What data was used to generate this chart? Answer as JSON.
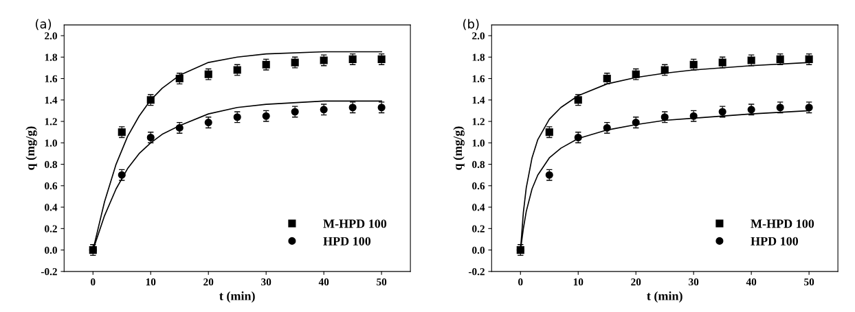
{
  "chart_data": [
    {
      "type": "scatter",
      "xlabel": "t (min)",
      "ylabel": "q (mg/g)",
      "annotations": [
        "(a)"
      ],
      "xlim": [
        -5,
        55
      ],
      "ylim": [
        -0.2,
        2.1
      ],
      "xticks": [
        0,
        10,
        20,
        30,
        40,
        50
      ],
      "yticks": [
        {
          "value": -0.2,
          "label": "-0.2"
        },
        {
          "value": 0,
          "label": "0.0"
        },
        {
          "value": 0.2,
          "label": "0.2"
        },
        {
          "value": 0.4,
          "label": "0.4"
        },
        {
          "value": 0.6,
          "label": "0.6"
        },
        {
          "value": 0.8,
          "label": "0.8"
        },
        {
          "value": 1.0,
          "label": "1.0"
        },
        {
          "value": 1.2,
          "label": "1.2"
        },
        {
          "value": 1.4,
          "label": "1.4"
        },
        {
          "value": 1.6,
          "label": "1.6"
        },
        {
          "value": 1.8,
          "label": "1.8"
        },
        {
          "value": 2.0,
          "label": "2.0"
        }
      ],
      "legend": "bottom right",
      "grid": false,
      "x": [
        0,
        5,
        10,
        15,
        20,
        25,
        30,
        35,
        40,
        45,
        50
      ],
      "series": [
        {
          "name": "M-HPD 100",
          "color": "#000000",
          "marker": "square",
          "values": [
            0,
            1.1,
            1.4,
            1.6,
            1.64,
            1.68,
            1.73,
            1.75,
            1.77,
            1.78,
            1.78
          ],
          "errors": [
            0.05,
            0.05,
            0.05,
            0.05,
            0.05,
            0.05,
            0.05,
            0.05,
            0.05,
            0.05,
            0.05
          ]
        },
        {
          "name": "HPD 100",
          "color": "#000000",
          "marker": "circle",
          "values": [
            0,
            0.7,
            1.05,
            1.14,
            1.19,
            1.24,
            1.25,
            1.29,
            1.31,
            1.33,
            1.33
          ],
          "errors": [
            null,
            0.05,
            0.05,
            0.05,
            0.05,
            0.05,
            0.05,
            0.05,
            0.05,
            0.05,
            0.05
          ]
        },
        {
          "type": "line",
          "color": "#000000",
          "x": [
            0,
            2,
            4,
            6,
            8,
            10,
            12,
            15,
            20,
            25,
            30,
            40,
            50
          ],
          "values": [
            0,
            0.45,
            0.8,
            1.06,
            1.25,
            1.4,
            1.51,
            1.63,
            1.75,
            1.8,
            1.83,
            1.85,
            1.85
          ]
        },
        {
          "type": "line",
          "color": "#000000",
          "x": [
            0,
            2,
            4,
            6,
            8,
            10,
            12,
            15,
            20,
            25,
            30,
            40,
            50
          ],
          "values": [
            0,
            0.32,
            0.57,
            0.76,
            0.9,
            1.0,
            1.08,
            1.16,
            1.27,
            1.33,
            1.36,
            1.39,
            1.39
          ]
        }
      ]
    },
    {
      "type": "scatter",
      "xlabel": "t (min)",
      "ylabel": "q (mg/g)",
      "annotations": [
        "(b)"
      ],
      "xlim": [
        -5,
        55
      ],
      "ylim": [
        -0.2,
        2.1
      ],
      "xticks": [
        0,
        10,
        20,
        30,
        40,
        50
      ],
      "yticks": [
        {
          "value": -0.2,
          "label": "-0.2"
        },
        {
          "value": 0,
          "label": "0.0"
        },
        {
          "value": 0.2,
          "label": "0.2"
        },
        {
          "value": 0.4,
          "label": "0.4"
        },
        {
          "value": 0.6,
          "label": "0.6"
        },
        {
          "value": 0.8,
          "label": "0.8"
        },
        {
          "value": 1.0,
          "label": "1.0"
        },
        {
          "value": 1.2,
          "label": "1.2"
        },
        {
          "value": 1.4,
          "label": "1.4"
        },
        {
          "value": 1.6,
          "label": "1.6"
        },
        {
          "value": 1.8,
          "label": "1.8"
        },
        {
          "value": 2.0,
          "label": "2.0"
        }
      ],
      "legend": "bottom right",
      "grid": false,
      "x": [
        0,
        5,
        10,
        15,
        20,
        25,
        30,
        35,
        40,
        45,
        50
      ],
      "series": [
        {
          "name": "M-HPD 100",
          "color": "#000000",
          "marker": "square",
          "values": [
            0,
            1.1,
            1.4,
            1.6,
            1.64,
            1.68,
            1.73,
            1.75,
            1.77,
            1.78,
            1.78
          ],
          "errors": [
            0.05,
            0.05,
            0.05,
            0.05,
            0.05,
            0.05,
            0.05,
            0.05,
            0.05,
            0.05,
            0.05
          ]
        },
        {
          "name": "HPD 100",
          "color": "#000000",
          "marker": "circle",
          "values": [
            0,
            0.7,
            1.05,
            1.14,
            1.19,
            1.24,
            1.25,
            1.29,
            1.31,
            1.33,
            1.33
          ],
          "errors": [
            null,
            0.05,
            0.05,
            0.05,
            0.05,
            0.05,
            0.05,
            0.05,
            0.05,
            0.05,
            0.05
          ]
        },
        {
          "type": "line",
          "color": "#000000",
          "x": [
            0,
            0.5,
            1,
            2,
            3,
            5,
            7,
            10,
            15,
            20,
            25,
            30,
            40,
            50
          ],
          "values": [
            0,
            0.35,
            0.58,
            0.86,
            1.03,
            1.22,
            1.33,
            1.44,
            1.55,
            1.61,
            1.65,
            1.68,
            1.72,
            1.75
          ]
        },
        {
          "type": "line",
          "color": "#000000",
          "x": [
            0,
            0.5,
            1,
            2,
            3,
            5,
            7,
            10,
            15,
            20,
            25,
            30,
            40,
            50
          ],
          "values": [
            0,
            0.2,
            0.36,
            0.57,
            0.7,
            0.86,
            0.95,
            1.04,
            1.12,
            1.17,
            1.21,
            1.23,
            1.27,
            1.3
          ]
        }
      ]
    }
  ]
}
